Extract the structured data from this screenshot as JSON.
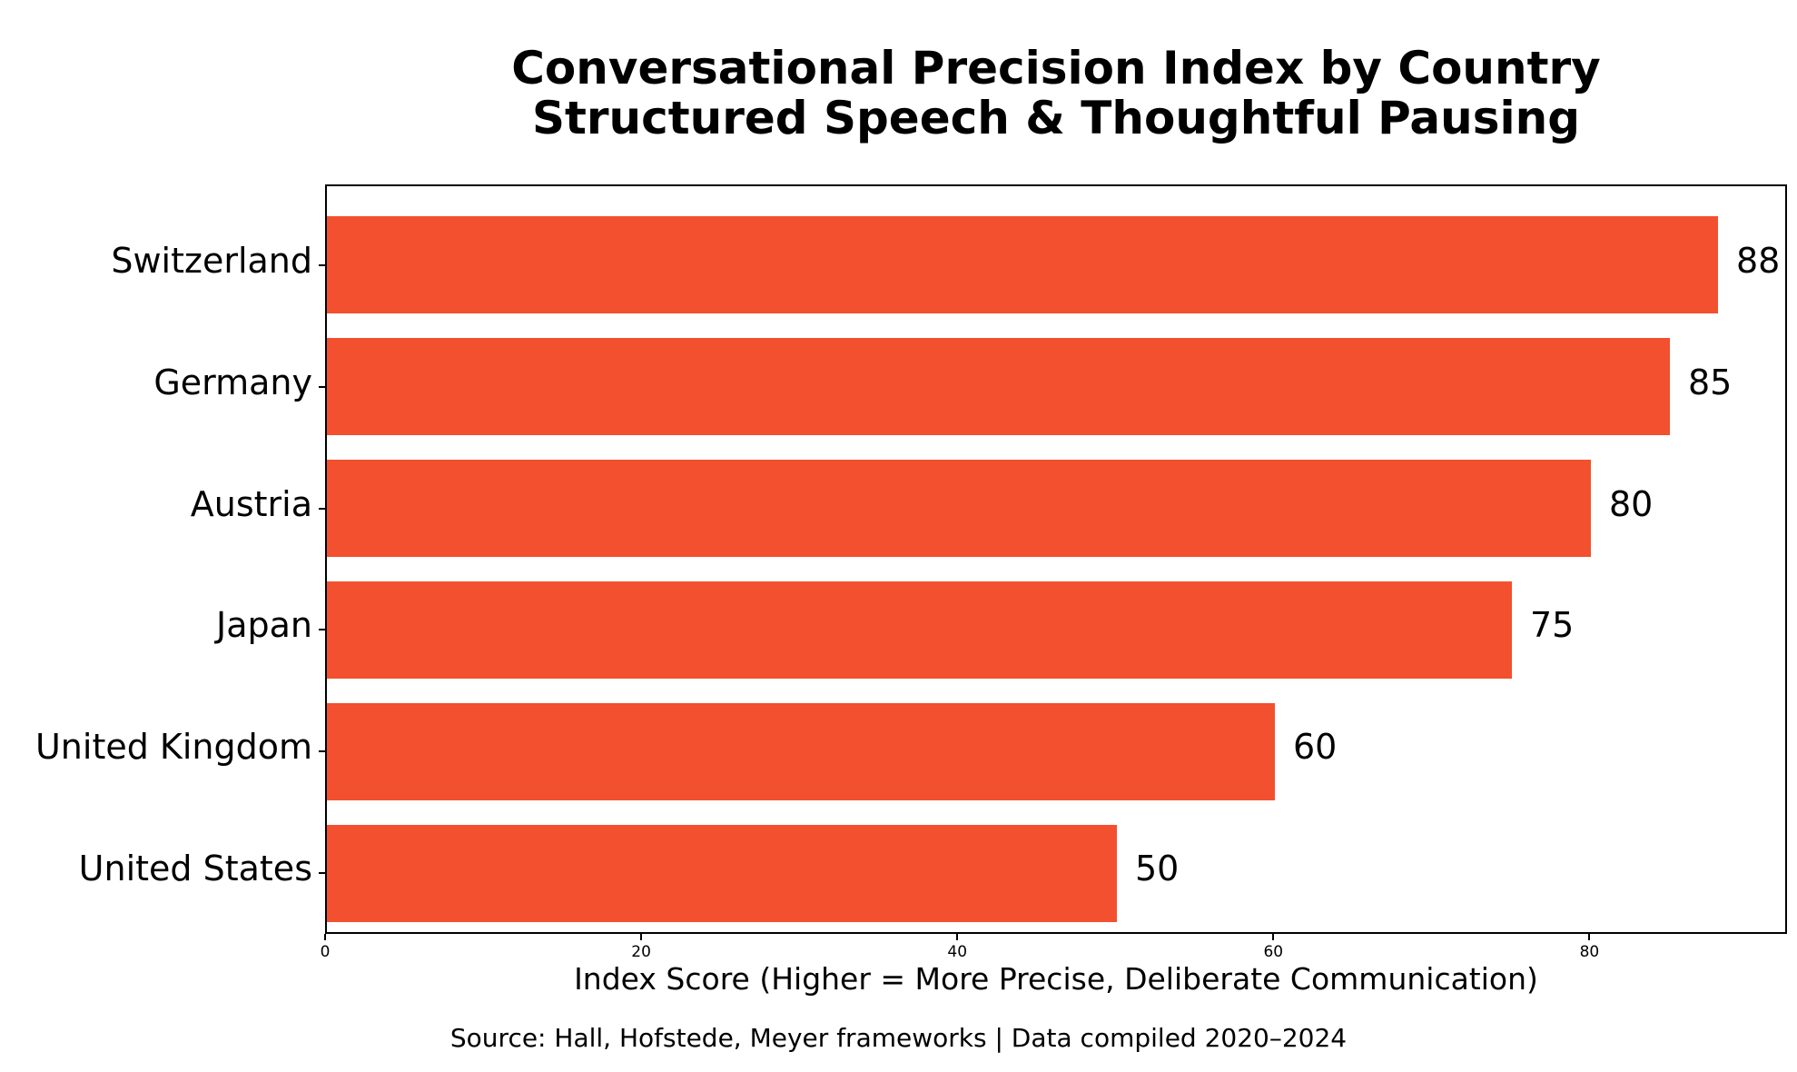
{
  "chart_data": {
    "type": "bar",
    "orientation": "horizontal",
    "title_line1": "Conversational Precision Index by Country",
    "title_line2": "Structured Speech & Thoughtful Pausing",
    "categories": [
      "Switzerland",
      "Germany",
      "Austria",
      "Japan",
      "United Kingdom",
      "United States"
    ],
    "values": [
      88,
      85,
      80,
      75,
      60,
      50
    ],
    "bar_labels": [
      "88",
      "85",
      "80",
      "75",
      "60",
      "50"
    ],
    "xlabel": "Index Score (Higher = More Precise, Deliberate Communication)",
    "source_note": "Source: Hall, Hofstede, Meyer frameworks | Data compiled 2020–2024",
    "xticks": [
      0,
      20,
      40,
      60,
      80
    ],
    "xtick_labels": [
      "0",
      "20",
      "40",
      "60",
      "80"
    ],
    "xlim": [
      0,
      92.5
    ],
    "grid": false,
    "legend": "none",
    "bar_color": "#F2502E",
    "axis_color": "#000000",
    "text_color": "#000000",
    "background_color": "#FFFFFF"
  }
}
